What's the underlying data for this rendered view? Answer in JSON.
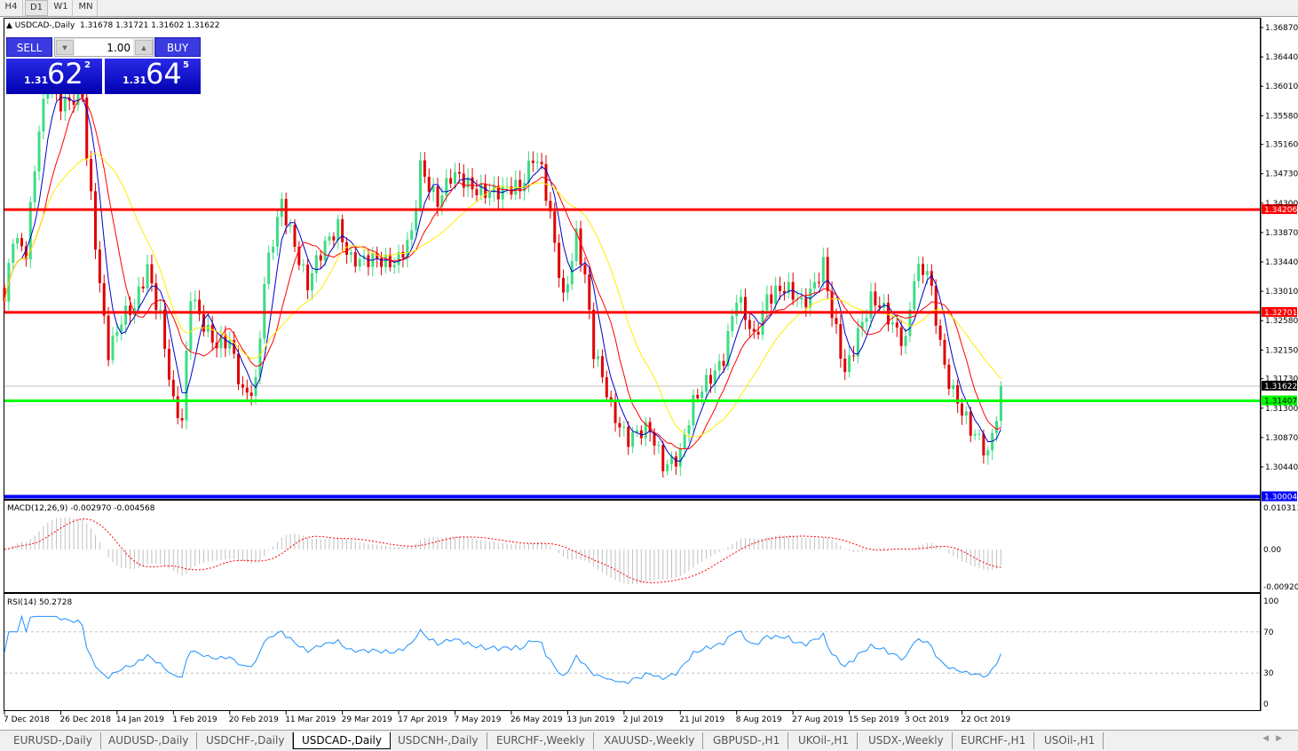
{
  "timeframes": [
    "H4",
    "D1",
    "W1",
    "MN"
  ],
  "active_timeframe": "D1",
  "chart_title": "USDCAD-,Daily",
  "ohlc": "1.31678 1.31721 1.31602 1.31622",
  "trade_panel": {
    "sell_label": "SELL",
    "buy_label": "BUY",
    "lot": "1.00",
    "sell_prefix": "1.31",
    "sell_big": "62",
    "sell_sup": "2",
    "buy_prefix": "1.31",
    "buy_big": "64",
    "buy_sup": "5"
  },
  "macd_label": "MACD(12,26,9) -0.002970 -0.004568",
  "rsi_label": "RSI(14) 50.2728",
  "bottom_tabs": [
    "EURUSD-,Daily",
    "AUDUSD-,Daily",
    "USDCHF-,Daily",
    "USDCAD-,Daily",
    "USDCNH-,Daily",
    "EURCHF-,Weekly",
    "XAUUSD-,Weekly",
    "GBPUSD-,H1",
    "UKOil-,H1",
    "USDX-,Weekly",
    "EURCHF-,H1",
    "USOil-,H1"
  ],
  "active_tab": "USDCAD-,Daily",
  "chart_data": {
    "type": "candlestick",
    "symbol": "USDCAD-",
    "timeframe": "Daily",
    "x_ticks": [
      "7 Dec 2018",
      "26 Dec 2018",
      "14 Jan 2019",
      "1 Feb 2019",
      "20 Feb 2019",
      "11 Mar 2019",
      "29 Mar 2019",
      "17 Apr 2019",
      "7 May 2019",
      "26 May 2019",
      "13 Jun 2019",
      "2 Jul 2019",
      "21 Jul 2019",
      "8 Aug 2019",
      "27 Aug 2019",
      "15 Sep 2019",
      "3 Oct 2019",
      "22 Oct 2019"
    ],
    "y_ticks": [
      "1.36870",
      "1.36440",
      "1.36010",
      "1.35580",
      "1.35160",
      "1.34730",
      "1.34300",
      "1.33870",
      "1.33440",
      "1.33010",
      "1.32580",
      "1.32150",
      "1.31730",
      "1.31300",
      "1.30870",
      "1.30440"
    ],
    "ylim": [
      1.2998,
      1.3727
    ],
    "close_keypoints": [
      [
        0,
        1.3286
      ],
      [
        2,
        1.339
      ],
      [
        5,
        1.336
      ],
      [
        8,
        1.3532
      ],
      [
        10,
        1.3597
      ],
      [
        13,
        1.3584
      ],
      [
        18,
        1.3584
      ],
      [
        19,
        1.349
      ],
      [
        22,
        1.3311
      ],
      [
        24,
        1.322
      ],
      [
        27,
        1.326
      ],
      [
        30,
        1.327
      ],
      [
        33,
        1.3338
      ],
      [
        36,
        1.327
      ],
      [
        39,
        1.313
      ],
      [
        41,
        1.3104
      ],
      [
        43,
        1.3298
      ],
      [
        46,
        1.326
      ],
      [
        49,
        1.322
      ],
      [
        52,
        1.322
      ],
      [
        55,
        1.3156
      ],
      [
        58,
        1.3169
      ],
      [
        60,
        1.3311
      ],
      [
        64,
        1.3428
      ],
      [
        67,
        1.3376
      ],
      [
        70,
        1.3311
      ],
      [
        73,
        1.335
      ],
      [
        77,
        1.3402
      ],
      [
        80,
        1.335
      ],
      [
        83,
        1.3338
      ],
      [
        87,
        1.335
      ],
      [
        91,
        1.335
      ],
      [
        94,
        1.3376
      ],
      [
        96,
        1.3479
      ],
      [
        100,
        1.344
      ],
      [
        103,
        1.3467
      ],
      [
        107,
        1.3454
      ],
      [
        111,
        1.3454
      ],
      [
        115,
        1.344
      ],
      [
        119,
        1.3454
      ],
      [
        122,
        1.3506
      ],
      [
        124,
        1.3479
      ],
      [
        126,
        1.3402
      ],
      [
        129,
        1.3286
      ],
      [
        132,
        1.339
      ],
      [
        134,
        1.3325
      ],
      [
        136,
        1.3208
      ],
      [
        140,
        1.313
      ],
      [
        144,
        1.3091
      ],
      [
        149,
        1.3091
      ],
      [
        152,
        1.3052
      ],
      [
        156,
        1.3065
      ],
      [
        159,
        1.313
      ],
      [
        163,
        1.3182
      ],
      [
        166,
        1.3208
      ],
      [
        169,
        1.3286
      ],
      [
        173,
        1.3234
      ],
      [
        176,
        1.3298
      ],
      [
        180,
        1.3298
      ],
      [
        184,
        1.3286
      ],
      [
        189,
        1.3338
      ],
      [
        191,
        1.326
      ],
      [
        194,
        1.3182
      ],
      [
        197,
        1.3247
      ],
      [
        200,
        1.3286
      ],
      [
        204,
        1.326
      ],
      [
        208,
        1.3234
      ],
      [
        210,
        1.3325
      ],
      [
        213,
        1.3325
      ],
      [
        215,
        1.326
      ],
      [
        217,
        1.3195
      ],
      [
        220,
        1.3143
      ],
      [
        223,
        1.3091
      ],
      [
        227,
        1.3065
      ],
      [
        229,
        1.313
      ],
      [
        230,
        1.31622
      ]
    ],
    "last_close": 1.31622,
    "horizontal_lines": [
      {
        "price": "1.34206",
        "color": "#ff0000"
      },
      {
        "price": "1.32701",
        "color": "#ff0000"
      },
      {
        "price": "1.31407",
        "color": "#00ff00"
      },
      {
        "price": "1.30004",
        "color": "#0000ff"
      }
    ],
    "current_price": {
      "price": "1.31622",
      "color": "#000000"
    },
    "colors": {
      "bull": "#3ddc84",
      "bear": "#e00000",
      "ma_fast": "#0000cc",
      "ma_mid": "#ff0000",
      "ma_slow": "#ffee00",
      "macd_hist": "#c0c0c0",
      "macd_signal": "#ff0000",
      "rsi": "#1e90ff"
    },
    "macd": {
      "y_ticks": [
        "0.010311",
        "0.00",
        "-0.009203"
      ],
      "ylim": [
        -0.009203,
        0.010311
      ]
    },
    "rsi": {
      "y_ticks": [
        "100",
        "70",
        "30",
        "0"
      ],
      "levels": [
        70,
        30
      ],
      "ylim": [
        0,
        100
      ]
    }
  }
}
